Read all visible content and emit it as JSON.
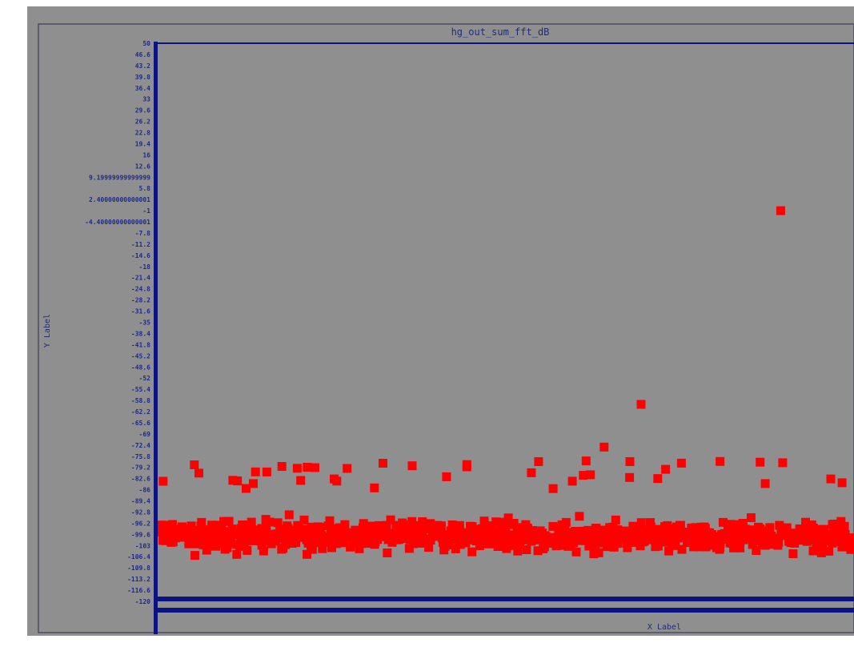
{
  "chart_data": {
    "type": "scatter",
    "title": "hg_out_sum_fft_dB",
    "xlabel": "X Label",
    "ylabel": "Y Label",
    "ylim": [
      -120,
      50
    ],
    "yticks": [
      "50",
      "46.6",
      "43.2",
      "39.8",
      "36.4",
      "33",
      "29.6",
      "26.2",
      "22.8",
      "19.4",
      "16",
      "12.6",
      "9.19999999999999",
      "5.8",
      "2.40000000000001",
      "-1",
      "-4.40000000000001",
      "-7.8",
      "-11.2",
      "-14.6",
      "-18",
      "-21.4",
      "-24.8",
      "-28.2",
      "-31.6",
      "-35",
      "-38.4",
      "-41.8",
      "-45.2",
      "-48.6",
      "-52",
      "-55.4",
      "-58.8",
      "-62.2",
      "-65.6",
      "-69",
      "-72.4",
      "-75.8",
      "-79.2",
      "-82.6",
      "-86",
      "-89.4",
      "-92.8",
      "-96.2",
      "-99.6",
      "-103",
      "-106.4",
      "-109.8",
      "-113.2",
      "-116.6",
      "-120"
    ],
    "grid": false,
    "legend": "none",
    "series": [
      {
        "approx_points": 850,
        "marker": "square",
        "value_distribution": "noise floor from about -125 to -86, centered near -100",
        "outliers": [
          {
            "x": 0.895,
            "y": -1
          },
          {
            "x": 0.695,
            "y": -60
          },
          {
            "x": 0.642,
            "y": -73
          }
        ]
      }
    ],
    "colors": {
      "background": "#8f8f8f",
      "axis": "#0b147e",
      "marker": "#ff0000",
      "title": "#1e2a8a"
    }
  }
}
